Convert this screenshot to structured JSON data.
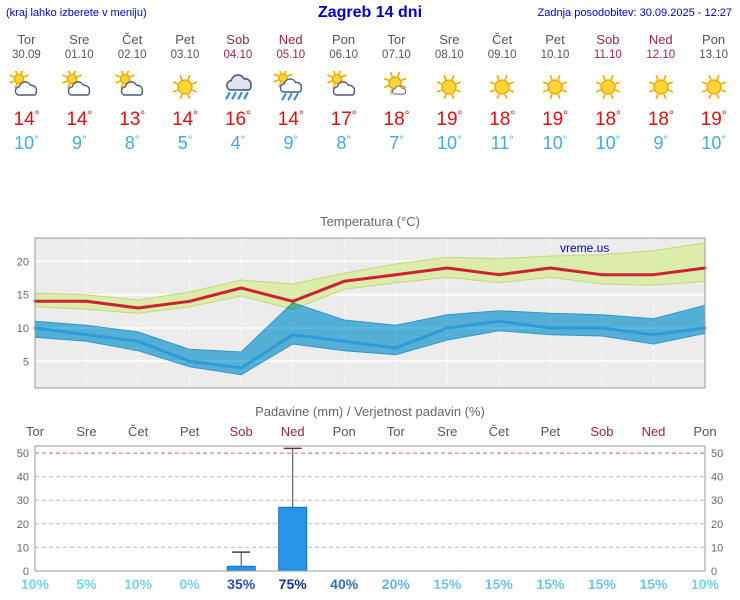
{
  "header": {
    "left_note": "(kraj lahko izberete v meniju)",
    "title": "Zagreb 14 dni",
    "last_update": "Zadnja posodobitev: 30.09.2025 - 12:27"
  },
  "colors": {
    "weekday": "#555555",
    "weekend": "#a02445",
    "temp_max": "#dd1111",
    "temp_min": "#44aadd",
    "header_text": "#0000cc"
  },
  "days": [
    {
      "name": "Tor",
      "date": "30.09",
      "weekend": false,
      "icon": "partly-cloudy",
      "tmax": "14",
      "tmin": "10"
    },
    {
      "name": "Sre",
      "date": "01.10",
      "weekend": false,
      "icon": "partly-cloudy",
      "tmax": "14",
      "tmin": "9"
    },
    {
      "name": "Čet",
      "date": "02.10",
      "weekend": false,
      "icon": "partly-cloudy",
      "tmax": "13",
      "tmin": "8"
    },
    {
      "name": "Pet",
      "date": "03.10",
      "weekend": false,
      "icon": "sunny",
      "tmax": "14",
      "tmin": "5"
    },
    {
      "name": "Sob",
      "date": "04.10",
      "weekend": true,
      "icon": "rain",
      "tmax": "16",
      "tmin": "4"
    },
    {
      "name": "Ned",
      "date": "05.10",
      "weekend": true,
      "icon": "sun-shower",
      "tmax": "14",
      "tmin": "9"
    },
    {
      "name": "Pon",
      "date": "06.10",
      "weekend": false,
      "icon": "partly-cloudy",
      "tmax": "17",
      "tmin": "8"
    },
    {
      "name": "Tor",
      "date": "07.10",
      "weekend": false,
      "icon": "mostly-sunny",
      "tmax": "18",
      "tmin": "7"
    },
    {
      "name": "Sre",
      "date": "08.10",
      "weekend": false,
      "icon": "sunny",
      "tmax": "19",
      "tmin": "10"
    },
    {
      "name": "Čet",
      "date": "09.10",
      "weekend": false,
      "icon": "sunny",
      "tmax": "18",
      "tmin": "11"
    },
    {
      "name": "Pet",
      "date": "10.10",
      "weekend": false,
      "icon": "sunny",
      "tmax": "19",
      "tmin": "10"
    },
    {
      "name": "Sob",
      "date": "11.10",
      "weekend": true,
      "icon": "sunny",
      "tmax": "18",
      "tmin": "10"
    },
    {
      "name": "Ned",
      "date": "12.10",
      "weekend": true,
      "icon": "sunny",
      "tmax": "18",
      "tmin": "9"
    },
    {
      "name": "Pon",
      "date": "13.10",
      "weekend": false,
      "icon": "sunny",
      "tmax": "19",
      "tmin": "10"
    }
  ],
  "chart_data": [
    {
      "type": "line",
      "title": "Temperatura (°C)",
      "watermark": "vreme.us",
      "x_labels": [
        "Tor",
        "Sre",
        "Čet",
        "Pet",
        "Sob",
        "Ned",
        "Pon",
        "Tor",
        "Sre",
        "Čet",
        "Pet",
        "Sob",
        "Ned",
        "Pon"
      ],
      "ylim": [
        1,
        23.5
      ],
      "yticks": [
        5,
        10,
        15,
        20
      ],
      "grid": true,
      "series": [
        {
          "name": "temp-max",
          "color": "#cc2233",
          "values": [
            14,
            14,
            13,
            14,
            16,
            14,
            17,
            18,
            19,
            18,
            19,
            18,
            18,
            19
          ]
        },
        {
          "name": "temp-min",
          "color": "#2e9bd6",
          "values": [
            10,
            9,
            8,
            5,
            4,
            9,
            8,
            7,
            10,
            11,
            10,
            10,
            9,
            10
          ]
        }
      ],
      "bands": [
        {
          "name": "temp-max-range",
          "color": "#dcecaa",
          "edge": "#c3d87c",
          "high": [
            15.2,
            15.0,
            14.2,
            15.4,
            17.2,
            16.6,
            18.2,
            19.6,
            20.6,
            20.4,
            20.8,
            21.0,
            21.6,
            22.8
          ],
          "low": [
            13.2,
            12.8,
            12.2,
            13.2,
            14.8,
            12.8,
            15.8,
            16.8,
            17.6,
            16.8,
            17.6,
            16.6,
            16.4,
            17.0
          ]
        },
        {
          "name": "temp-min-range",
          "color": "#5bbde8",
          "edge": "#3aa2d8",
          "high": [
            11.0,
            10.4,
            9.4,
            6.8,
            6.4,
            13.8,
            11.2,
            10.4,
            12.0,
            12.6,
            12.2,
            12.0,
            11.4,
            13.4
          ],
          "low": [
            8.6,
            8.0,
            6.6,
            4.2,
            3.0,
            7.6,
            6.6,
            6.0,
            8.2,
            9.6,
            9.0,
            8.8,
            7.6,
            9.2
          ]
        }
      ]
    },
    {
      "type": "bar",
      "title": "Padavine (mm) / Verjetnost padavin (%)",
      "x_labels": [
        "Tor",
        "Sre",
        "Čet",
        "Pet",
        "Sob",
        "Ned",
        "Pon",
        "Tor",
        "Sre",
        "Čet",
        "Pet",
        "Sob",
        "Ned",
        "Pon"
      ],
      "x_labels_weekend": [
        false,
        false,
        false,
        false,
        true,
        true,
        false,
        false,
        false,
        false,
        false,
        true,
        true,
        false
      ],
      "ylim": [
        0,
        53
      ],
      "yticks": [
        0,
        10,
        20,
        30,
        40,
        50
      ],
      "values": [
        0,
        0,
        0,
        0,
        2,
        27,
        0,
        0,
        0,
        0,
        0,
        0,
        0,
        0
      ],
      "whiskers": [
        0,
        0,
        0,
        0,
        8,
        52,
        0,
        0,
        0,
        0,
        0,
        0,
        0,
        0
      ],
      "bar_color": "#2595e9",
      "bar_edge": "#1470b8",
      "probabilities": [
        "10%",
        "5%",
        "10%",
        "0%",
        "35%",
        "75%",
        "40%",
        "20%",
        "15%",
        "15%",
        "15%",
        "15%",
        "15%",
        "10%"
      ],
      "prob_colors": [
        "#73d2ee",
        "#73d2ee",
        "#73d2ee",
        "#73d2ee",
        "#2b4ea8",
        "#1b2f8f",
        "#2f6fc0",
        "#5fb6e2",
        "#6cc6e8",
        "#6cc6e8",
        "#6cc6e8",
        "#6cc6e8",
        "#6cc6e8",
        "#73d2ee"
      ]
    }
  ]
}
